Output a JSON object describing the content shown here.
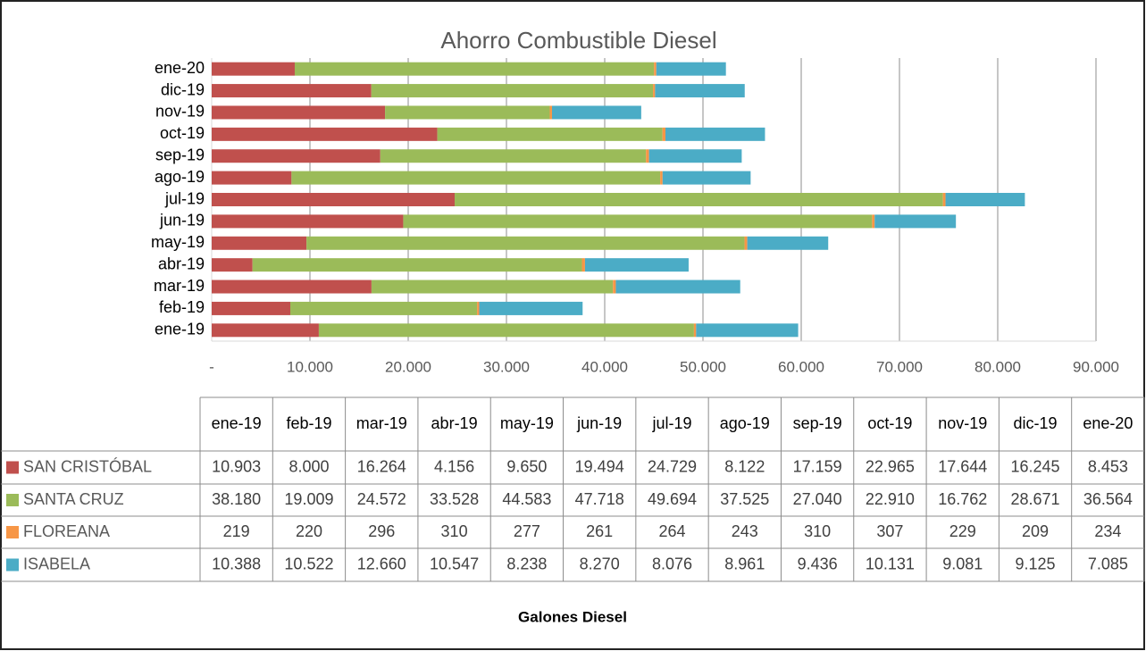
{
  "chart_data": {
    "type": "stacked-bar-horizontal",
    "title": "Ahorro Combustible Diesel",
    "x_label": "Galones Diesel",
    "categories": [
      "ene-19",
      "feb-19",
      "mar-19",
      "abr-19",
      "may-19",
      "jun-19",
      "jul-19",
      "ago-19",
      "sep-19",
      "oct-19",
      "nov-19",
      "dic-19",
      "ene-20"
    ],
    "series": [
      {
        "name": "SAN CRISTÓBAL",
        "color": "#c0504d",
        "values": [
          10903,
          8000,
          16264,
          4156,
          9650,
          19494,
          24729,
          8122,
          17159,
          22965,
          17644,
          16245,
          8453
        ],
        "value_labels": [
          "10.903",
          "8.000",
          "16.264",
          "4.156",
          "9.650",
          "19.494",
          "24.729",
          "8.122",
          "17.159",
          "22.965",
          "17.644",
          "16.245",
          "8.453"
        ]
      },
      {
        "name": "SANTA CRUZ",
        "color": "#9bbb59",
        "values": [
          38180,
          19009,
          24572,
          33528,
          44583,
          47718,
          49694,
          37525,
          27040,
          22910,
          16762,
          28671,
          36564
        ],
        "value_labels": [
          "38.180",
          "19.009",
          "24.572",
          "33.528",
          "44.583",
          "47.718",
          "49.694",
          "37.525",
          "27.040",
          "22.910",
          "16.762",
          "28.671",
          "36.564"
        ]
      },
      {
        "name": "FLOREANA",
        "color": "#f79646",
        "values": [
          219,
          220,
          296,
          310,
          277,
          261,
          264,
          243,
          310,
          307,
          229,
          209,
          234
        ]
      },
      {
        "name": "ISABELA",
        "color": "#4bacc6",
        "values": [
          10388,
          10522,
          12660,
          10547,
          8238,
          8270,
          8076,
          8961,
          9436,
          10131,
          9081,
          9125,
          7085
        ],
        "value_labels": [
          "10.388",
          "10.522",
          "12.660",
          "10.547",
          "8.238",
          "8.270",
          "8.076",
          "8.961",
          "9.436",
          "10.131",
          "9.081",
          "9.125",
          "7.085"
        ]
      }
    ],
    "xlim": [
      0,
      90000
    ],
    "xticks": [
      {
        "value": 0,
        "label": "-"
      },
      {
        "value": 10000,
        "label": "10.000"
      },
      {
        "value": 20000,
        "label": "20.000"
      },
      {
        "value": 30000,
        "label": "30.000"
      },
      {
        "value": 40000,
        "label": "40.000"
      },
      {
        "value": 50000,
        "label": "50.000"
      },
      {
        "value": 60000,
        "label": "60.000"
      },
      {
        "value": 70000,
        "label": "70.000"
      },
      {
        "value": 80000,
        "label": "80.000"
      },
      {
        "value": 90000,
        "label": "90.000"
      }
    ],
    "grid": true
  }
}
